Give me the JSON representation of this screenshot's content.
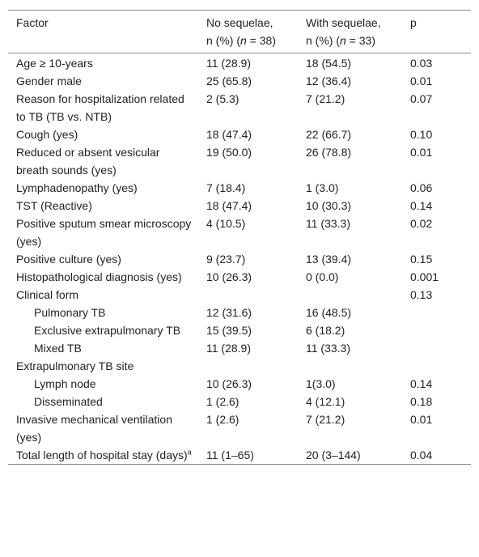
{
  "table": {
    "header": [
      [
        {
          "text": "Factor"
        }
      ],
      [
        {
          "text": "No sequelae,"
        },
        {
          "text": "n (%) ("
        },
        {
          "text": "n",
          "style": "italic"
        },
        {
          "text": " = 38)"
        }
      ],
      [
        {
          "text": "With sequelae,"
        },
        {
          "text": "n (%) ("
        },
        {
          "text": "n",
          "style": "italic"
        },
        {
          "text": " = 33)"
        }
      ],
      [
        {
          "text": "p"
        }
      ]
    ],
    "rows": [
      {
        "cells": [
          "Age ≥ 10-years",
          "11 (28.9)",
          "18 (54.5)",
          "0.03"
        ]
      },
      {
        "cells": [
          "Gender male",
          "25 (65.8)",
          "12 (36.4)",
          "0.01"
        ]
      },
      {
        "cells": [
          "Reason for hospitalization related to TB (TB vs. NTB)",
          "2 (5.3)",
          "7 (21.2)",
          "0.07"
        ]
      },
      {
        "cells": [
          "Cough (yes)",
          "18 (47.4)",
          "22 (66.7)",
          "0.10"
        ]
      },
      {
        "cells": [
          "Reduced or absent vesicular breath sounds (yes)",
          "19 (50.0)",
          "26 (78.8)",
          "0.01"
        ]
      },
      {
        "cells": [
          "Lymphadenopathy (yes)",
          "7 (18.4)",
          "1 (3.0)",
          "0.06"
        ]
      },
      {
        "cells": [
          "TST (Reactive)",
          "18 (47.4)",
          "10 (30.3)",
          "0.14"
        ]
      },
      {
        "cells": [
          "Positive sputum smear microscopy (yes)",
          "4 (10.5)",
          "11 (33.3)",
          "0.02"
        ]
      },
      {
        "cells": [
          "Positive culture (yes)",
          "9 (23.7)",
          "13 (39.4)",
          "0.15"
        ]
      },
      {
        "cells": [
          "Histopathological diagnosis (yes)",
          "10 (26.3)",
          "0 (0.0)",
          "0.001"
        ]
      },
      {
        "cells": [
          "Clinical form",
          null,
          null,
          "0.13"
        ],
        "subrows": [
          {
            "cells": [
              "Pulmonary TB",
              "12 (31.6)",
              "16 (48.5)",
              null
            ]
          },
          {
            "cells": [
              "Exclusive extrapulmonary TB",
              "15 (39.5)",
              "6 (18.2)",
              null
            ]
          },
          {
            "cells": [
              "Mixed TB",
              "11 (28.9)",
              "11 (33.3)",
              null
            ]
          }
        ]
      },
      {
        "cells": [
          "Extrapulmonary TB site",
          null,
          null,
          null
        ],
        "subrows": [
          {
            "cells": [
              "Lymph node",
              "10 (26.3)",
              "1(3.0)",
              "0.14"
            ]
          },
          {
            "cells": [
              "Disseminated",
              "1 (2.6)",
              "4 (12.1)",
              "0.18"
            ]
          }
        ]
      },
      {
        "cells": [
          "Invasive mechanical ventilation (yes)",
          "1 (2.6)",
          "7 (21.2)",
          "0.01"
        ]
      },
      {
        "cells": [
          "Total length of hospital stay (days)",
          "11 (1–65)",
          "20 (3–144)",
          "0.04"
        ],
        "footnote": "a"
      }
    ]
  }
}
